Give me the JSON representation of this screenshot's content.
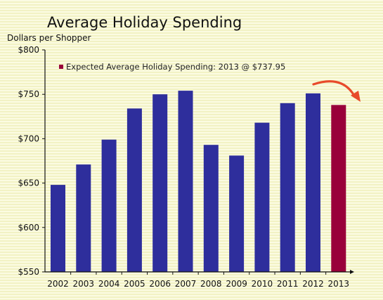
{
  "chart_data": {
    "type": "bar",
    "title": "Average Holiday Spending",
    "ylabel": "Dollars per Shopper",
    "xlabel": "",
    "categories": [
      "2002",
      "2003",
      "2004",
      "2005",
      "2006",
      "2007",
      "2008",
      "2009",
      "2010",
      "2011",
      "2012",
      "2013"
    ],
    "values": [
      648,
      671,
      699,
      734,
      750,
      754,
      693,
      681,
      718,
      740,
      751,
      737.95
    ],
    "ylim": [
      550,
      800
    ],
    "yticks": [
      550,
      600,
      650,
      700,
      750,
      800
    ],
    "ytick_labels": [
      "$550",
      "$600",
      "$650",
      "$700",
      "$750",
      "$800"
    ],
    "grid": false,
    "legend": {
      "position": "top-left",
      "entries": [
        {
          "label": "Expected Average Holiday Spending: 2013 @ $737.95",
          "color": "#99003a"
        }
      ]
    },
    "colors": {
      "bar": "#2e2e9c",
      "highlight": "#99003a",
      "arrow": "#e84a2a"
    },
    "highlight_index": 11
  }
}
